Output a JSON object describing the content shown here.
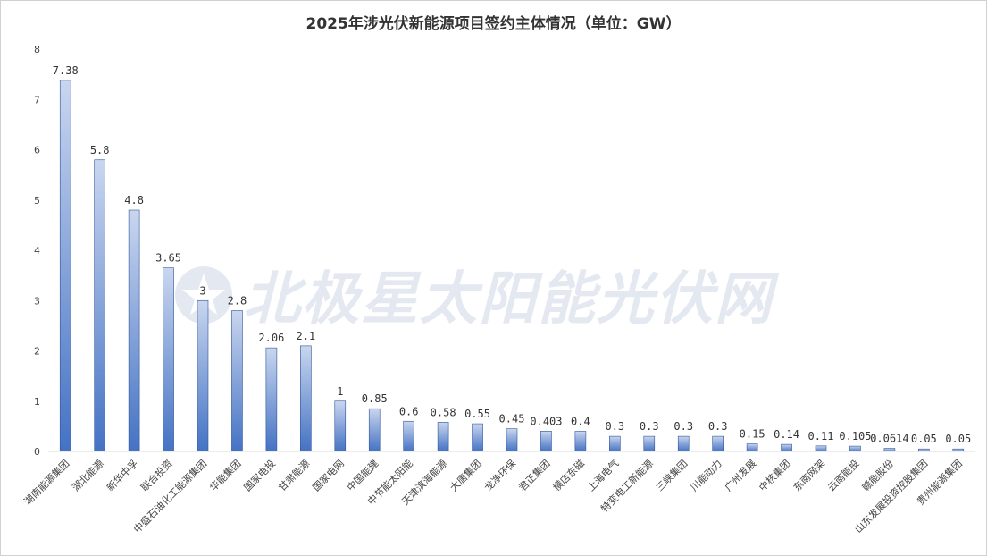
{
  "chart_data": {
    "type": "bar",
    "title": "2025年涉光伏新能源项目签约主体情况（单位：GW）",
    "xlabel": "",
    "ylabel": "",
    "ylim": [
      0,
      8
    ],
    "yticks": [
      0,
      1,
      2,
      3,
      4,
      5,
      6,
      7,
      8
    ],
    "grid": false,
    "categories": [
      "湖南能源集团",
      "湖北能源",
      "新华中孚",
      "联合投资",
      "中盛石油化工能源集团",
      "华能集团",
      "国家电投",
      "甘肃能源",
      "国家电网",
      "中国能建",
      "中节能太阳能",
      "天津滨海能源",
      "大唐集团",
      "龙净环保",
      "君正集团",
      "横店东磁",
      "上海电气",
      "特变电工新能源",
      "三峡集团",
      "川能动力",
      "广州发展",
      "中核集团",
      "东南网架",
      "云南能投",
      "赣能股份",
      "山东发展投资控股集团",
      "贵州能源集团"
    ],
    "values": [
      7.38,
      5.8,
      4.8,
      3.65,
      3,
      2.8,
      2.06,
      2.1,
      1,
      0.85,
      0.6,
      0.58,
      0.55,
      0.45,
      0.403,
      0.4,
      0.3,
      0.3,
      0.3,
      0.3,
      0.15,
      0.14,
      0.11,
      0.105,
      0.0614,
      0.05,
      0.05
    ],
    "data_labels": [
      "7.38",
      "5.8",
      "4.8",
      "3.65",
      "3",
      "2.8",
      "2.06",
      "2.1",
      "1",
      "0.85",
      "0.6",
      "0.58",
      "0.55",
      "0.45",
      "0.403",
      "0.4",
      "0.3",
      "0.3",
      "0.3",
      "0.3",
      "0.15",
      "0.14",
      "0.11",
      "0.105",
      "0.0614",
      "0.05",
      "0.05"
    ],
    "colors": {
      "bar_top": "#c9d6ef",
      "bar_bottom": "#4472c4",
      "bar_stroke": "#2f5597"
    }
  },
  "watermark": {
    "text": "北极星太阳能光伏网",
    "logo_icon": "polaris-star-logo",
    "color": "#e4e9f1"
  }
}
